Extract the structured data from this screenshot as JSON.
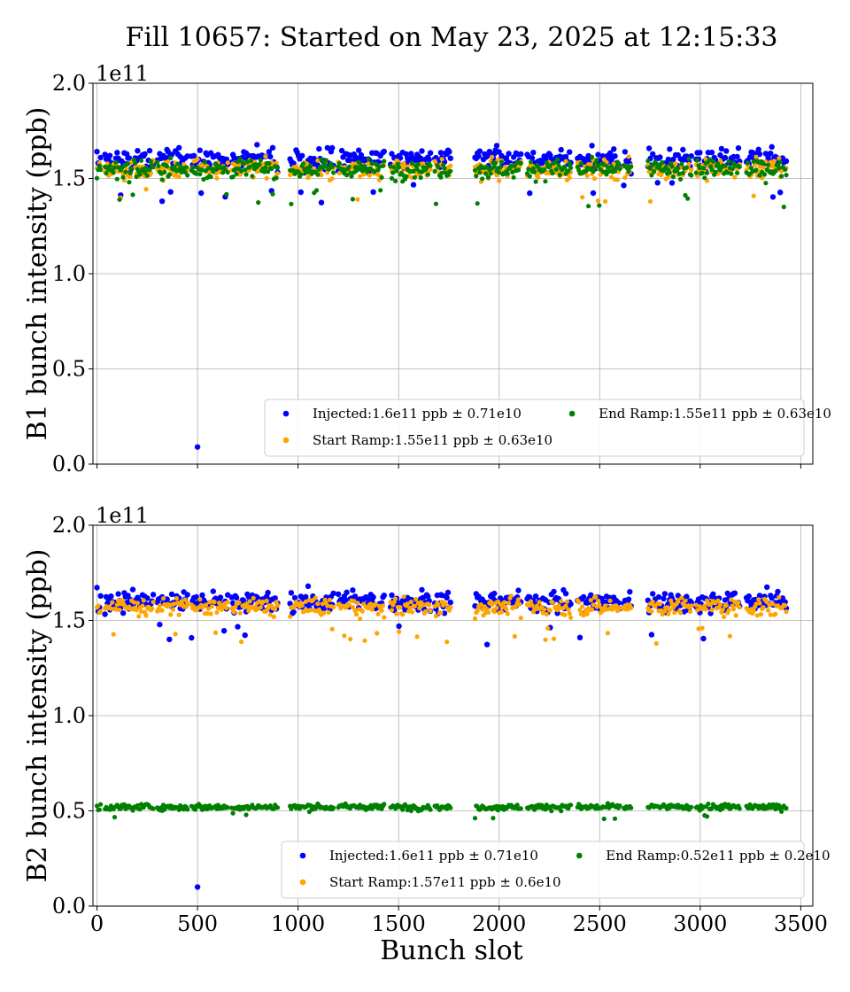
{
  "chart_data": [
    {
      "type": "scatter",
      "title": "Fill 10657: Started on May 23, 2025 at 12:15:33",
      "xlabel": "",
      "ylabel": "B1 bunch intensity (ppb)",
      "y_exponent": "1e11",
      "xlim": [
        -20,
        3560
      ],
      "ylim": [
        0.0,
        2.0
      ],
      "xticks": [
        "0",
        "500",
        "1000",
        "1500",
        "2000",
        "2500",
        "3000",
        "3500"
      ],
      "yticks": [
        "0.0",
        "0.5",
        "1.0",
        "1.5",
        "2.0"
      ],
      "x_tick_labels_visible": false,
      "grid": true,
      "legend_position": "lower-right",
      "series": [
        {
          "name": "Injected:1.6e11 ppb ± 0.71e10",
          "color": "#0000ff",
          "mean": 1.6,
          "spread": 0.071,
          "outlier": {
            "x": 500,
            "y": 0.09
          }
        },
        {
          "name": "Start Ramp:1.55e11 ppb ± 0.63e10",
          "color": "#ffa500",
          "mean": 1.55,
          "spread": 0.063
        },
        {
          "name": "End Ramp:1.55e11 ppb ± 0.63e10",
          "color": "#008000",
          "mean": 1.55,
          "spread": 0.063
        }
      ]
    },
    {
      "type": "scatter",
      "title": "",
      "xlabel": "Bunch slot",
      "ylabel": "B2 bunch intensity (ppb)",
      "y_exponent": "1e11",
      "xlim": [
        -20,
        3560
      ],
      "ylim": [
        0.0,
        2.0
      ],
      "xticks": [
        "0",
        "500",
        "1000",
        "1500",
        "2000",
        "2500",
        "3000",
        "3500"
      ],
      "yticks": [
        "0.0",
        "0.5",
        "1.0",
        "1.5",
        "2.0"
      ],
      "x_tick_labels_visible": true,
      "grid": true,
      "legend_position": "lower-right",
      "series": [
        {
          "name": "Injected:1.6e11 ppb ± 0.71e10",
          "color": "#0000ff",
          "mean": 1.6,
          "spread": 0.071,
          "outlier": {
            "x": 500,
            "y": 0.1
          }
        },
        {
          "name": "Start Ramp:1.57e11 ppb ± 0.6e10",
          "color": "#ffa500",
          "mean": 1.57,
          "spread": 0.06
        },
        {
          "name": "End Ramp:0.52e11 ppb ± 0.2e10",
          "color": "#008000",
          "mean": 0.52,
          "spread": 0.02
        }
      ]
    }
  ]
}
